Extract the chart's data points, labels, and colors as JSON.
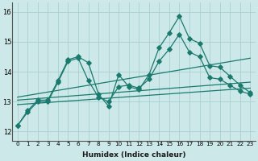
{
  "xlabel": "Humidex (Indice chaleur)",
  "xlim": [
    -0.5,
    23.5
  ],
  "ylim": [
    11.7,
    16.3
  ],
  "xticks": [
    0,
    1,
    2,
    3,
    4,
    5,
    6,
    7,
    8,
    9,
    10,
    11,
    12,
    13,
    14,
    15,
    16,
    17,
    18,
    19,
    20,
    21,
    22,
    23
  ],
  "yticks": [
    12,
    13,
    14,
    15,
    16
  ],
  "line_color": "#1a7a6e",
  "bg_color": "#cce8e8",
  "grid_color": "#a8d0d0",
  "lines": [
    {
      "x": [
        0,
        1,
        2,
        3,
        4,
        5,
        6,
        7,
        8,
        9,
        10,
        11,
        12,
        13,
        14,
        15,
        16,
        17,
        18,
        19,
        20,
        21,
        22,
        23
      ],
      "y": [
        12.2,
        12.7,
        13.05,
        13.05,
        13.7,
        14.4,
        14.5,
        14.3,
        13.25,
        12.85,
        13.9,
        13.5,
        13.4,
        13.9,
        14.8,
        15.3,
        15.85,
        15.1,
        14.95,
        14.2,
        14.15,
        13.85,
        13.55,
        13.3
      ],
      "marker": true
    },
    {
      "x": [
        0,
        1,
        2,
        3,
        4,
        5,
        6,
        7,
        8,
        9,
        10,
        11,
        12,
        13,
        14,
        15,
        16,
        17,
        18,
        19,
        20,
        21,
        22,
        23
      ],
      "y": [
        12.2,
        12.65,
        13.0,
        13.0,
        13.65,
        14.35,
        14.45,
        13.7,
        13.15,
        13.0,
        13.5,
        13.55,
        13.45,
        13.75,
        14.35,
        14.75,
        15.25,
        14.65,
        14.5,
        13.8,
        13.75,
        13.55,
        13.35,
        13.25
      ],
      "marker": true
    },
    {
      "x": [
        0,
        23
      ],
      "y": [
        12.9,
        13.45
      ],
      "marker": false
    },
    {
      "x": [
        0,
        23
      ],
      "y": [
        13.05,
        13.65
      ],
      "marker": false
    },
    {
      "x": [
        0,
        23
      ],
      "y": [
        13.15,
        14.45
      ],
      "marker": false
    }
  ],
  "markersize": 2.8,
  "linewidth": 0.9
}
